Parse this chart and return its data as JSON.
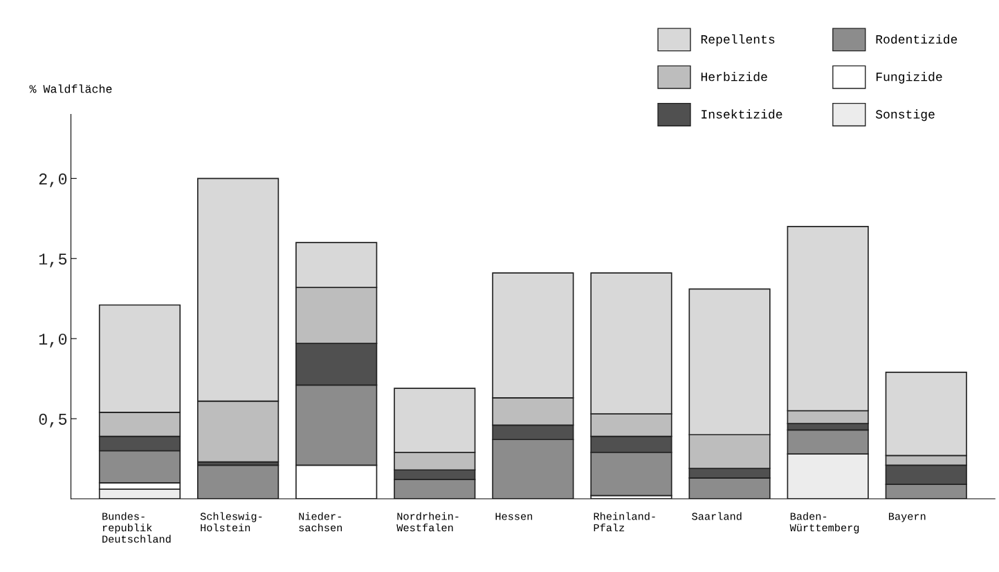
{
  "chart_data": {
    "type": "bar",
    "stacked": true,
    "ylabel": "% Waldfläche",
    "categories": [
      "Bundes-\nrepublik\nDeutschland",
      "Schleswig-\nHolstein",
      "Nieder-\nsachsen",
      "Nordrhein-\nWestfalen",
      "Hessen",
      "Rheinland-\nPfalz",
      "Saarland",
      "Baden-\nWürttemberg",
      "Bayern"
    ],
    "series": [
      {
        "name": "Sonstige",
        "color": "#ececec",
        "values": [
          0.06,
          0,
          0,
          0,
          0,
          0,
          0,
          0.28,
          0
        ]
      },
      {
        "name": "Fungizide",
        "color": "#ffffff",
        "values": [
          0.04,
          0,
          0.21,
          0,
          0,
          0.02,
          0,
          0,
          0
        ]
      },
      {
        "name": "Rodentizide",
        "color": "#8c8c8c",
        "values": [
          0.2,
          0.21,
          0.5,
          0.12,
          0.37,
          0.27,
          0.13,
          0.15,
          0.09
        ]
      },
      {
        "name": "Insektizide",
        "color": "#505050",
        "values": [
          0.09,
          0.02,
          0.26,
          0.06,
          0.09,
          0.1,
          0.06,
          0.04,
          0.12
        ]
      },
      {
        "name": "Herbizide",
        "color": "#bdbdbd",
        "values": [
          0.15,
          0.38,
          0.35,
          0.11,
          0.17,
          0.14,
          0.21,
          0.08,
          0.06
        ]
      },
      {
        "name": "Repellents",
        "color": "#d8d8d8",
        "values": [
          0.67,
          1.39,
          0.28,
          0.4,
          0.78,
          0.88,
          0.91,
          1.15,
          0.52
        ]
      }
    ],
    "ylim": [
      0,
      2.4
    ],
    "yticks": [
      {
        "value": 0.5,
        "label": "0,5"
      },
      {
        "value": 1.0,
        "label": "1,0"
      },
      {
        "value": 1.5,
        "label": "1,5"
      },
      {
        "value": 2.0,
        "label": "2,0"
      }
    ],
    "legend": "top right"
  }
}
